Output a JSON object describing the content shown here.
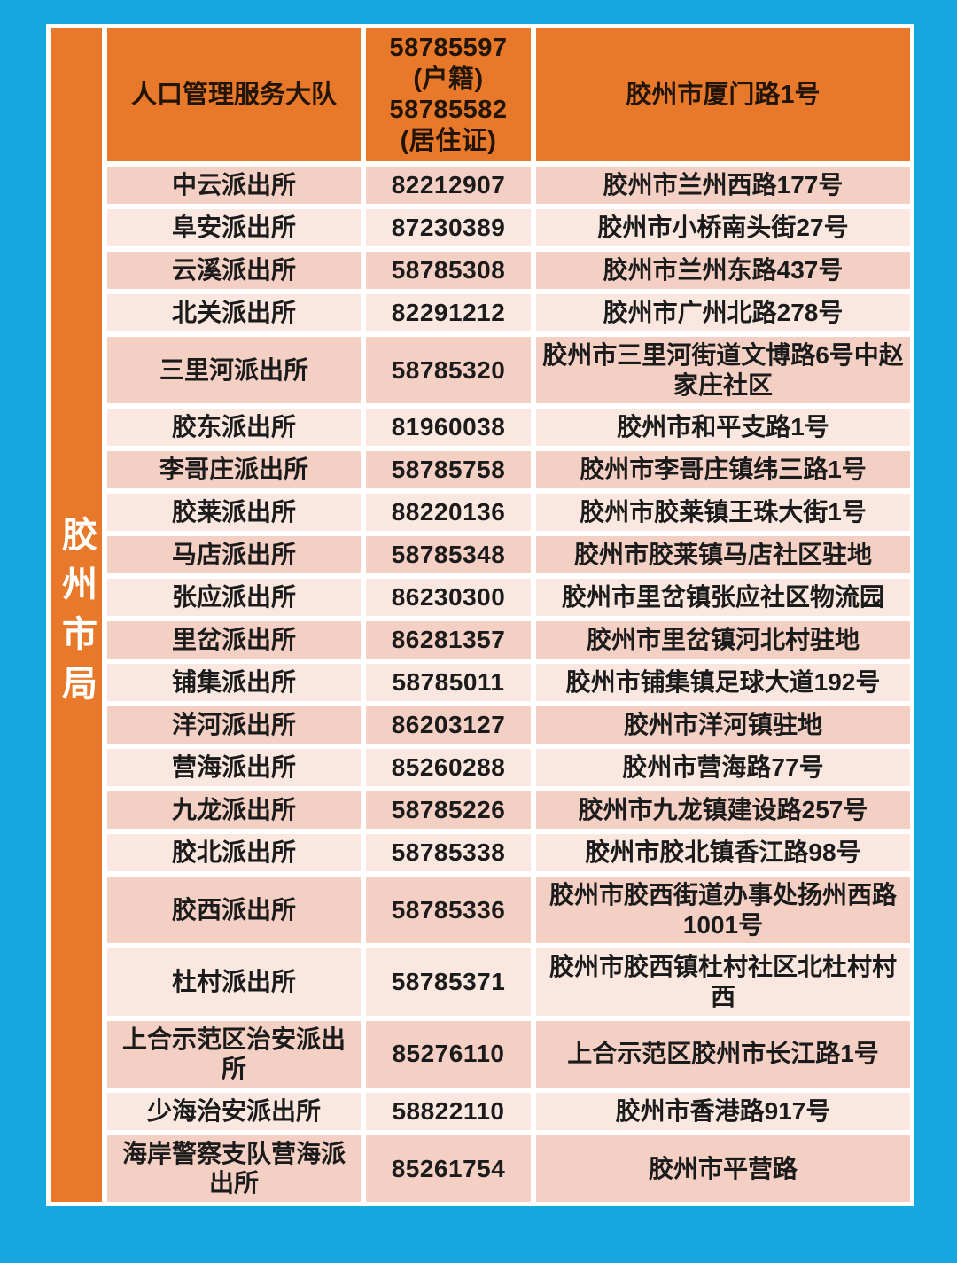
{
  "colors": {
    "background_blue": "#16A7E0",
    "accent_orange": "#E8792A",
    "row_dark": "#F4CFC3",
    "row_light": "#FAE8E0",
    "gap_white": "#FFFFFF",
    "text_dark": "#1B1B1B",
    "strip_text": "#FFFFFF"
  },
  "bureau": {
    "label": "胶州市局"
  },
  "table": {
    "header": {
      "department": "人口管理服务大队",
      "phone": "58785597\n(户籍)\n58785582\n(居住证)",
      "address": "胶州市厦门路1号"
    },
    "rows": [
      {
        "name": "中云派出所",
        "phone": "82212907",
        "address": "胶州市兰州西路177号"
      },
      {
        "name": "阜安派出所",
        "phone": "87230389",
        "address": "胶州市小桥南头街27号"
      },
      {
        "name": "云溪派出所",
        "phone": "58785308",
        "address": "胶州市兰州东路437号"
      },
      {
        "name": "北关派出所",
        "phone": "82291212",
        "address": "胶州市广州北路278号"
      },
      {
        "name": "三里河派出所",
        "phone": "58785320",
        "address": "胶州市三里河街道文博路6号中赵家庄社区"
      },
      {
        "name": "胶东派出所",
        "phone": "81960038",
        "address": "胶州市和平支路1号"
      },
      {
        "name": "李哥庄派出所",
        "phone": "58785758",
        "address": "胶州市李哥庄镇纬三路1号"
      },
      {
        "name": "胶莱派出所",
        "phone": "88220136",
        "address": "胶州市胶莱镇王珠大街1号"
      },
      {
        "name": "马店派出所",
        "phone": "58785348",
        "address": "胶州市胶莱镇马店社区驻地"
      },
      {
        "name": "张应派出所",
        "phone": "86230300",
        "address": "胶州市里岔镇张应社区物流园"
      },
      {
        "name": "里岔派出所",
        "phone": "86281357",
        "address": "胶州市里岔镇河北村驻地"
      },
      {
        "name": "铺集派出所",
        "phone": "58785011",
        "address": "胶州市铺集镇足球大道192号"
      },
      {
        "name": "洋河派出所",
        "phone": "86203127",
        "address": "胶州市洋河镇驻地"
      },
      {
        "name": "营海派出所",
        "phone": "85260288",
        "address": "胶州市营海路77号"
      },
      {
        "name": "九龙派出所",
        "phone": "58785226",
        "address": "胶州市九龙镇建设路257号"
      },
      {
        "name": "胶北派出所",
        "phone": "58785338",
        "address": "胶州市胶北镇香江路98号"
      },
      {
        "name": "胶西派出所",
        "phone": "58785336",
        "address": "胶州市胶西街道办事处扬州西路1001号"
      },
      {
        "name": "杜村派出所",
        "phone": "58785371",
        "address": "胶州市胶西镇杜村社区北杜村村西"
      },
      {
        "name": "上合示范区治安派出所",
        "phone": "85276110",
        "address": "上合示范区胶州市长江路1号"
      },
      {
        "name": "少海治安派出所",
        "phone": "58822110",
        "address": "胶州市香港路917号"
      },
      {
        "name": "海岸警察支队营海派出所",
        "phone": "85261754",
        "address": "胶州市平营路"
      }
    ]
  }
}
